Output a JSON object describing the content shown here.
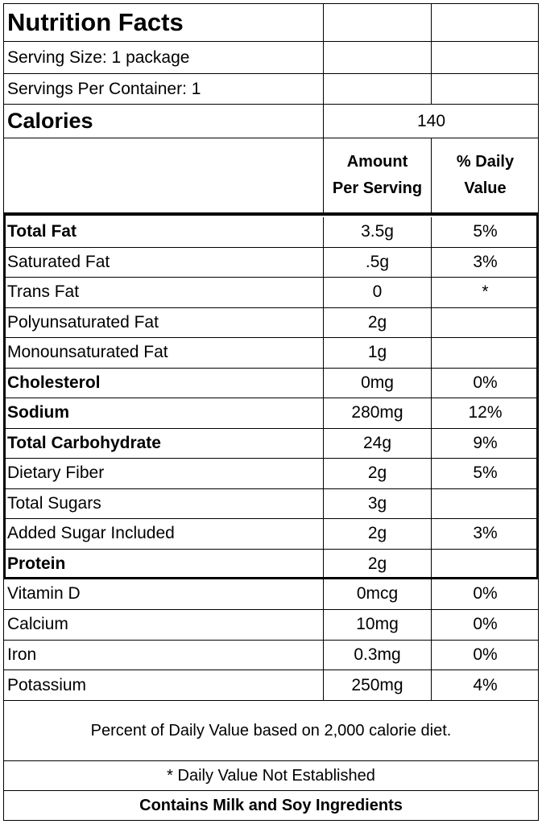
{
  "title": "Nutrition Facts",
  "serving_size": "Serving Size: 1 package",
  "servings_per_container": "Servings Per Container: 1",
  "calories": {
    "label": "Calories",
    "value": "140"
  },
  "column_headers": {
    "amount_line1": "Amount",
    "amount_line2": "Per Serving",
    "dv_line1": "% Daily",
    "dv_line2": "Value"
  },
  "nutrients": [
    {
      "name": "Total Fat",
      "amount": "3.5g",
      "dv": "5%"
    },
    {
      "name": "Saturated Fat",
      "amount": ".5g",
      "dv": "3%"
    },
    {
      "name": "Trans Fat",
      "amount": "0",
      "dv": "*"
    },
    {
      "name": "Polyunsaturated Fat",
      "amount": "2g",
      "dv": ""
    },
    {
      "name": "Monounsaturated Fat",
      "amount": "1g",
      "dv": ""
    },
    {
      "name": "Cholesterol",
      "amount": "0mg",
      "dv": "0%"
    },
    {
      "name": "Sodium",
      "amount": "280mg",
      "dv": "12%"
    },
    {
      "name": "Total Carbohydrate",
      "amount": "24g",
      "dv": "9%"
    },
    {
      "name": "Dietary Fiber",
      "amount": "2g",
      "dv": "5%"
    },
    {
      "name": "Total Sugars",
      "amount": "3g",
      "dv": ""
    },
    {
      "name": "Added Sugar Included",
      "amount": "2g",
      "dv": "3%"
    },
    {
      "name": "Protein",
      "amount": "2g",
      "dv": ""
    }
  ],
  "vitamins": [
    {
      "name": "Vitamin D",
      "amount": "0mcg",
      "dv": "0%"
    },
    {
      "name": "Calcium",
      "amount": "10mg",
      "dv": "0%"
    },
    {
      "name": "Iron",
      "amount": "0.3mg",
      "dv": "0%"
    },
    {
      "name": "Potassium",
      "amount": "250mg",
      "dv": "4%"
    }
  ],
  "footnote_dv": "Percent of Daily Value based on 2,000 calorie diet.",
  "footnote_asterisk": "* Daily Value Not Established",
  "allergen": "Contains Milk and Soy Ingredients"
}
